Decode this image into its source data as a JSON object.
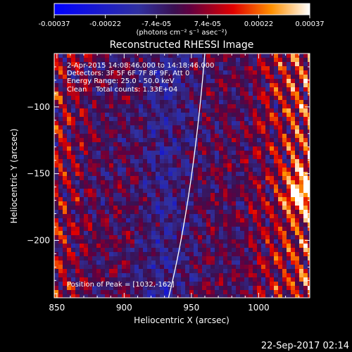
{
  "chart_data": {
    "type": "heatmap",
    "title": "Reconstructed RHESSI Image",
    "xlabel": "Heliocentric X (arcsec)",
    "ylabel": "Heliocentric Y (arcsec)",
    "xlim": [
      848,
      1038
    ],
    "ylim": [
      -243,
      -60
    ],
    "x_ticks": [
      850,
      900,
      950,
      1000
    ],
    "y_ticks": [
      -200,
      -150,
      -100
    ],
    "colorbar": {
      "ticks": [
        "-0.00037",
        "-0.00022",
        "-7.4e-05",
        "7.4e-05",
        "0.00022",
        "0.00037"
      ],
      "unit": "(photons cm⁻² s⁻¹ asec⁻²)",
      "range": [
        -0.00037,
        0.00037
      ]
    },
    "annotations": [
      "2-Apr-2015 14:08:46.000 to 14:18:46.000",
      "Detectors: 3F 5F 6F 7F 8F 9F, Att 0",
      "Energy Range: 25.0 - 50.0 keV",
      "Clean    Total counts: 1.33E+04"
    ],
    "peak_label": "Position of Peak = [1032,-162]",
    "peak": [
      1032,
      -162
    ],
    "limb_x": [
      933,
      951,
      960
    ],
    "limb_y": [
      -243,
      -170,
      -60
    ],
    "timestamp": "22-Sep-2017 02:14"
  }
}
